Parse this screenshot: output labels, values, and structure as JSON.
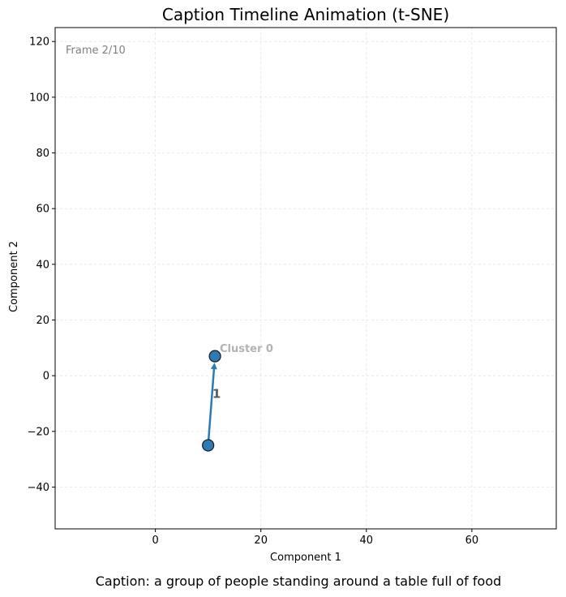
{
  "chart_data": {
    "type": "scatter",
    "title": "Caption Timeline Animation (t-SNE)",
    "xlabel": "Component 1",
    "ylabel": "Component 2",
    "xlim": [
      -19,
      76
    ],
    "ylim": [
      -55,
      125
    ],
    "xticks": [
      0,
      20,
      40,
      60
    ],
    "yticks": [
      -40,
      -20,
      0,
      20,
      40,
      60,
      80,
      100,
      120
    ],
    "grid": true,
    "frame_label": "Frame 2/10",
    "caption": "Caption: a group of people standing around a table full of food",
    "points": [
      {
        "x": 10,
        "y": -25
      },
      {
        "x": 11.3,
        "y": 7
      }
    ],
    "point_color": "#2e7ab5",
    "arrow_color": "#2e7ab5",
    "step_labels": [
      {
        "text": "1",
        "x": 11.6,
        "y": -8
      }
    ],
    "cluster_labels": [
      {
        "text": "Cluster 0",
        "x": 12.2,
        "y": 8.5
      }
    ]
  }
}
